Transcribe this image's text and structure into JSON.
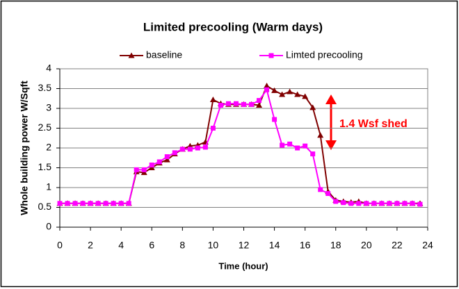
{
  "chart_data": {
    "type": "line",
    "title": "Limited precooling (Warm days)",
    "x_label": "Time (hour)",
    "y_label": "Whole building power W/Sqft",
    "annotation": "1.4 Wsf shed",
    "x": [
      0,
      0.5,
      1,
      1.5,
      2,
      2.5,
      3,
      3.5,
      4,
      4.5,
      5,
      5.5,
      6,
      6.5,
      7,
      7.5,
      8,
      8.5,
      9,
      9.5,
      10,
      10.5,
      11,
      11.5,
      12,
      12.5,
      13,
      13.5,
      14,
      14.5,
      15,
      15.5,
      16,
      16.5,
      17,
      17.5,
      18,
      18.5,
      19,
      19.5,
      20,
      20.5,
      21,
      21.5,
      22,
      22.5,
      23,
      23.5
    ],
    "series": [
      {
        "name": "baseline",
        "color": "#800000",
        "marker": "triangle",
        "values": [
          0.6,
          0.6,
          0.6,
          0.6,
          0.6,
          0.6,
          0.6,
          0.6,
          0.6,
          0.6,
          1.4,
          1.38,
          1.5,
          1.62,
          1.7,
          1.85,
          1.97,
          2.05,
          2.07,
          2.15,
          3.22,
          3.12,
          3.1,
          3.1,
          3.1,
          3.1,
          3.08,
          3.57,
          3.45,
          3.35,
          3.42,
          3.35,
          3.3,
          3.02,
          2.32,
          0.9,
          0.68,
          0.65,
          0.63,
          0.65,
          0.6,
          0.6,
          0.6,
          0.6,
          0.6,
          0.6,
          0.6,
          0.6
        ]
      },
      {
        "name": "Limted precooling",
        "color": "#ff00ff",
        "marker": "square",
        "values": [
          0.6,
          0.6,
          0.6,
          0.6,
          0.6,
          0.6,
          0.6,
          0.6,
          0.6,
          0.6,
          1.45,
          1.45,
          1.57,
          1.65,
          1.78,
          1.88,
          1.97,
          1.97,
          2.0,
          2.02,
          2.5,
          3.08,
          3.12,
          3.12,
          3.1,
          3.1,
          3.2,
          3.47,
          2.72,
          2.07,
          2.1,
          2.0,
          2.05,
          1.85,
          0.95,
          0.85,
          0.65,
          0.62,
          0.6,
          0.6,
          0.6,
          0.6,
          0.6,
          0.6,
          0.6,
          0.6,
          0.6,
          0.58
        ]
      }
    ],
    "xlim": [
      0,
      24
    ],
    "xticks": [
      0,
      2,
      4,
      6,
      8,
      10,
      12,
      14,
      16,
      18,
      20,
      22,
      24
    ],
    "ylim": [
      0,
      4
    ],
    "yticks": [
      0,
      0.5,
      1,
      1.5,
      2,
      2.5,
      3,
      3.5,
      4
    ],
    "grid": true,
    "legend": "top"
  }
}
